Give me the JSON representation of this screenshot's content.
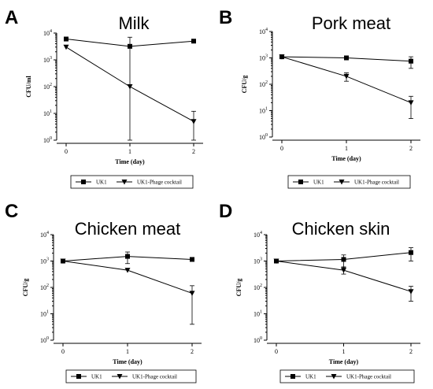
{
  "chart_data": [
    {
      "type": "line",
      "panel_label": "A",
      "title": "Milk",
      "xlabel": "Time (day)",
      "ylabel": "CFU/ml",
      "y_scale": "log",
      "ylim": [
        1,
        10000
      ],
      "y_ticks": [
        {
          "base": "10",
          "exp": "0"
        },
        {
          "base": "10",
          "exp": "1"
        },
        {
          "base": "10",
          "exp": "2"
        },
        {
          "base": "10",
          "exp": "3"
        },
        {
          "base": "10",
          "exp": "4"
        }
      ],
      "x_ticks": [
        "0",
        "1",
        "2"
      ],
      "x": [
        0,
        1,
        2
      ],
      "legend_position": "bottom",
      "series": [
        {
          "name": "UK1",
          "marker": "square",
          "values": [
            6000,
            3200,
            5000
          ],
          "errors": [
            0,
            3800,
            0
          ]
        },
        {
          "name": "UK1-Phage cocktail",
          "marker": "triangle-down",
          "values": [
            3000,
            100,
            5
          ],
          "errors": [
            0,
            0,
            7
          ]
        }
      ]
    },
    {
      "type": "line",
      "panel_label": "B",
      "title": "Pork meat",
      "xlabel": "Time (day)",
      "ylabel": "CFU/g",
      "y_scale": "log",
      "ylim": [
        1,
        10000
      ],
      "y_ticks": [
        {
          "base": "10",
          "exp": "0"
        },
        {
          "base": "10",
          "exp": "1"
        },
        {
          "base": "10",
          "exp": "2"
        },
        {
          "base": "10",
          "exp": "3"
        },
        {
          "base": "10",
          "exp": "4"
        }
      ],
      "x_ticks": [
        "0",
        "1",
        "2"
      ],
      "x": [
        0,
        1,
        2
      ],
      "legend_position": "bottom",
      "series": [
        {
          "name": "UK1",
          "marker": "square",
          "values": [
            1100,
            1000,
            750
          ],
          "errors": [
            0,
            0,
            350
          ]
        },
        {
          "name": "UK1-Phage cocktail",
          "marker": "triangle-down",
          "values": [
            1100,
            200,
            20
          ],
          "errors": [
            0,
            70,
            15
          ]
        }
      ]
    },
    {
      "type": "line",
      "panel_label": "C",
      "title": "Chicken meat",
      "xlabel": "Time (day)",
      "ylabel": "CFU/g",
      "y_scale": "log",
      "ylim": [
        1,
        10000
      ],
      "y_ticks": [
        {
          "base": "10",
          "exp": "0"
        },
        {
          "base": "10",
          "exp": "1"
        },
        {
          "base": "10",
          "exp": "2"
        },
        {
          "base": "10",
          "exp": "3"
        },
        {
          "base": "10",
          "exp": "4"
        }
      ],
      "x_ticks": [
        "0",
        "1",
        "2"
      ],
      "x": [
        0,
        1,
        2
      ],
      "legend_position": "bottom",
      "series": [
        {
          "name": "UK1",
          "marker": "square",
          "values": [
            1000,
            1500,
            1150
          ],
          "errors": [
            0,
            700,
            0
          ]
        },
        {
          "name": "UK1-Phage cocktail",
          "marker": "triangle-down",
          "values": [
            1000,
            450,
            60
          ],
          "errors": [
            0,
            0,
            56
          ]
        }
      ]
    },
    {
      "type": "line",
      "panel_label": "D",
      "title": "Chicken skin",
      "xlabel": "Time (day)",
      "ylabel": "CFU/g",
      "y_scale": "log",
      "ylim": [
        1,
        10000
      ],
      "y_ticks": [
        {
          "base": "10",
          "exp": "0"
        },
        {
          "base": "10",
          "exp": "1"
        },
        {
          "base": "10",
          "exp": "2"
        },
        {
          "base": "10",
          "exp": "3"
        },
        {
          "base": "10",
          "exp": "4"
        }
      ],
      "x_ticks": [
        "0",
        "1",
        "2"
      ],
      "x": [
        0,
        1,
        2
      ],
      "legend_position": "bottom",
      "series": [
        {
          "name": "UK1",
          "marker": "square",
          "values": [
            1000,
            1150,
            2100
          ],
          "errors": [
            0,
            550,
            1100
          ]
        },
        {
          "name": "UK1-Phage cocktail",
          "marker": "triangle-down",
          "values": [
            1000,
            450,
            70
          ],
          "errors": [
            0,
            130,
            40
          ]
        }
      ]
    }
  ]
}
